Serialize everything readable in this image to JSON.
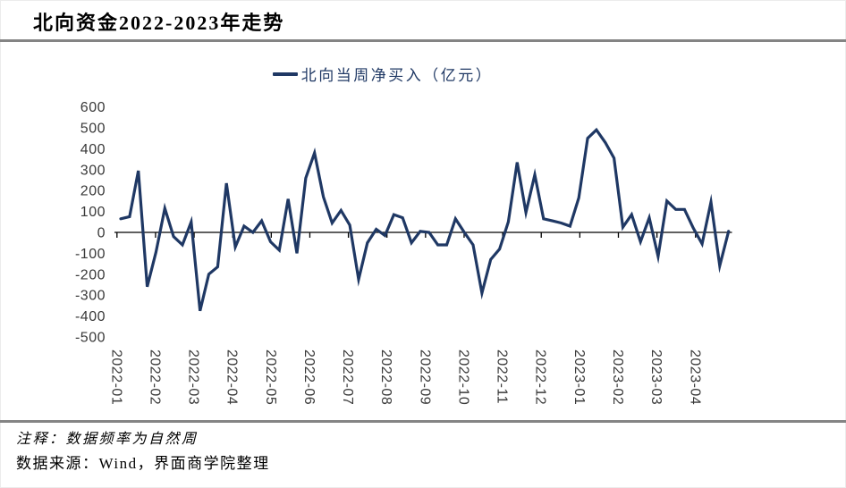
{
  "page": {
    "title": "北向资金2022-2023年走势",
    "note1": "注释：数据频率为自然周",
    "note2": "数据来源：Wind，界面商学院整理"
  },
  "legend": {
    "label": "北向当周净买入（亿元）"
  },
  "colors": {
    "line": "#1f3864",
    "legend_text": "#1f3864",
    "axis": "#000000",
    "axis_label": "#393939",
    "divider": "#848484",
    "background": "#ffffff"
  },
  "chart_data": {
    "type": "line",
    "title": "北向资金2022-2023年走势",
    "frequency": "weekly",
    "unit": "亿元",
    "grid": false,
    "legend_position": "top-center",
    "ylim": [
      -500,
      600
    ],
    "ytick_interval": 100,
    "yticks": [
      600,
      500,
      400,
      300,
      200,
      100,
      0,
      -100,
      -200,
      -300,
      -400,
      -500
    ],
    "xtick_labels": [
      "2022-01",
      "2022-02",
      "2022-03",
      "2022-04",
      "2022-05",
      "2022-06",
      "2022-07",
      "2022-08",
      "2022-09",
      "2022-10",
      "2022-11",
      "2022-12",
      "2023-01",
      "2023-02",
      "2023-03",
      "2023-04"
    ],
    "x": [
      "2022-01-07",
      "2022-01-14",
      "2022-01-21",
      "2022-01-28",
      "2022-02-04",
      "2022-02-11",
      "2022-02-18",
      "2022-02-25",
      "2022-03-04",
      "2022-03-11",
      "2022-03-18",
      "2022-03-25",
      "2022-04-01",
      "2022-04-08",
      "2022-04-15",
      "2022-04-22",
      "2022-04-29",
      "2022-05-06",
      "2022-05-13",
      "2022-05-20",
      "2022-05-27",
      "2022-06-03",
      "2022-06-10",
      "2022-06-17",
      "2022-06-24",
      "2022-07-01",
      "2022-07-08",
      "2022-07-15",
      "2022-07-22",
      "2022-07-29",
      "2022-08-05",
      "2022-08-12",
      "2022-08-19",
      "2022-08-26",
      "2022-09-02",
      "2022-09-09",
      "2022-09-16",
      "2022-09-23",
      "2022-09-30",
      "2022-10-07",
      "2022-10-14",
      "2022-10-21",
      "2022-10-28",
      "2022-11-04",
      "2022-11-11",
      "2022-11-18",
      "2022-11-25",
      "2022-12-02",
      "2022-12-09",
      "2022-12-16",
      "2022-12-23",
      "2022-12-30",
      "2023-01-06",
      "2023-01-13",
      "2023-01-20",
      "2023-01-27",
      "2023-02-03",
      "2023-02-10",
      "2023-02-17",
      "2023-02-24",
      "2023-03-03",
      "2023-03-10",
      "2023-03-17",
      "2023-03-24",
      "2023-03-31",
      "2023-04-07",
      "2023-04-14",
      "2023-04-21",
      "2023-04-28",
      "2023-05-05"
    ],
    "series": [
      {
        "name": "北向当周净买入（亿元）",
        "values": [
          65,
          75,
          295,
          -260,
          -95,
          115,
          -20,
          -60,
          50,
          -375,
          -200,
          -165,
          235,
          -70,
          30,
          0,
          55,
          -45,
          -85,
          160,
          -100,
          260,
          380,
          170,
          45,
          105,
          35,
          -225,
          -50,
          15,
          -15,
          85,
          70,
          -50,
          5,
          0,
          -60,
          -60,
          65,
          0,
          -60,
          -290,
          -130,
          -80,
          50,
          335,
          95,
          275,
          65,
          55,
          45,
          30,
          165,
          450,
          490,
          430,
          355,
          25,
          85,
          -45,
          70,
          -115,
          150,
          110,
          110,
          20,
          -55,
          145,
          -160,
          5
        ]
      }
    ]
  }
}
